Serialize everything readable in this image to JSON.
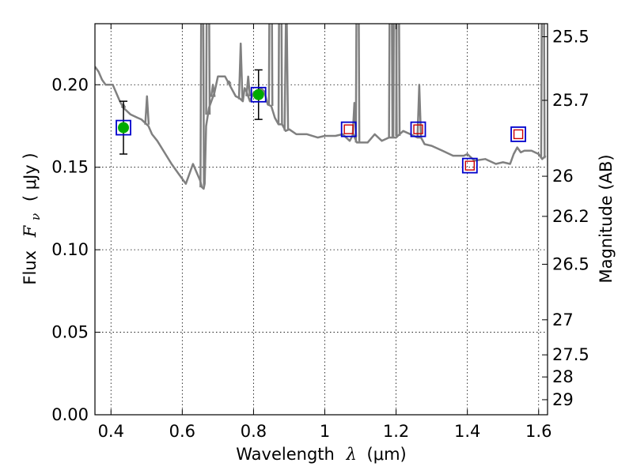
{
  "chart_data": {
    "type": "scatter",
    "xlabel": "Wavelength",
    "xlabel_symbol": "λ",
    "xlabel_unit": "(μm)",
    "ylabel": "Flux",
    "ylabel_symbol": "F",
    "ylabel_subscript": "ν",
    "ylabel_unit": "( μJy )",
    "y2label": "Magnitude (AB)",
    "xlim": [
      0.355,
      1.625
    ],
    "ylim": [
      0.0,
      0.237
    ],
    "grid": true,
    "legend": "none",
    "colors": {
      "model": "#808080",
      "observed_fill": "#00aa00",
      "observed_box": "#0000cc",
      "predicted_inner": "#cc0000",
      "predicted_box": "#0000cc",
      "errorbar": "#000000"
    },
    "x_ticks": [
      {
        "v": 0.4,
        "label": "0.4"
      },
      {
        "v": 0.6,
        "label": "0.6"
      },
      {
        "v": 0.8,
        "label": "0.8"
      },
      {
        "v": 1.0,
        "label": "1"
      },
      {
        "v": 1.2,
        "label": "1.2"
      },
      {
        "v": 1.4,
        "label": "1.4"
      },
      {
        "v": 1.6,
        "label": "1.6"
      }
    ],
    "y_ticks": [
      {
        "v": 0.0,
        "label": "0.00"
      },
      {
        "v": 0.05,
        "label": "0.05"
      },
      {
        "v": 0.1,
        "label": "0.10"
      },
      {
        "v": 0.15,
        "label": "0.15"
      },
      {
        "v": 0.2,
        "label": "0.20"
      }
    ],
    "mag_ticks": [
      {
        "v": 25.5,
        "label": "25.5"
      },
      {
        "v": 25.7,
        "label": "25.7"
      },
      {
        "v": 26.0,
        "label": "26"
      },
      {
        "v": 26.2,
        "label": "26.2"
      },
      {
        "v": 26.5,
        "label": "26.5"
      },
      {
        "v": 27.0,
        "label": "27"
      },
      {
        "v": 27.5,
        "label": "27.5"
      },
      {
        "v": 28.0,
        "label": "28"
      },
      {
        "v": 29.0,
        "label": "29"
      }
    ],
    "model_spectrum": {
      "x": [
        0.355,
        0.365,
        0.375,
        0.385,
        0.395,
        0.405,
        0.415,
        0.425,
        0.435,
        0.445,
        0.455,
        0.465,
        0.475,
        0.485,
        0.495,
        0.5,
        0.505,
        0.515,
        0.53,
        0.55,
        0.57,
        0.59,
        0.61,
        0.63,
        0.64,
        0.65,
        0.655,
        0.66,
        0.663,
        0.667,
        0.675,
        0.69,
        0.7,
        0.72,
        0.74,
        0.75,
        0.76,
        0.77,
        0.775,
        0.78,
        0.785,
        0.79,
        0.8,
        0.82,
        0.83,
        0.84,
        0.85,
        0.86,
        0.87,
        0.88,
        0.89,
        0.9,
        0.92,
        0.95,
        0.98,
        1.0,
        1.03,
        1.05,
        1.07,
        1.08,
        1.09,
        1.1,
        1.12,
        1.14,
        1.16,
        1.18,
        1.2,
        1.22,
        1.24,
        1.26,
        1.27,
        1.28,
        1.3,
        1.33,
        1.36,
        1.39,
        1.4,
        1.42,
        1.45,
        1.48,
        1.5,
        1.52,
        1.53,
        1.54,
        1.55,
        1.56,
        1.58,
        1.6,
        1.61,
        1.62
      ],
      "y": [
        0.211,
        0.208,
        0.203,
        0.2,
        0.2,
        0.2,
        0.195,
        0.19,
        0.186,
        0.184,
        0.182,
        0.181,
        0.18,
        0.179,
        0.177,
        0.176,
        0.175,
        0.17,
        0.166,
        0.159,
        0.152,
        0.146,
        0.14,
        0.152,
        0.147,
        0.142,
        0.138,
        0.137,
        0.14,
        0.175,
        0.186,
        0.195,
        0.205,
        0.205,
        0.197,
        0.193,
        0.192,
        0.19,
        0.198,
        0.196,
        0.193,
        0.19,
        0.195,
        0.198,
        0.196,
        0.188,
        0.187,
        0.18,
        0.176,
        0.176,
        0.172,
        0.173,
        0.17,
        0.17,
        0.168,
        0.169,
        0.169,
        0.17,
        0.166,
        0.17,
        0.165,
        0.165,
        0.165,
        0.17,
        0.166,
        0.168,
        0.168,
        0.172,
        0.17,
        0.168,
        0.168,
        0.164,
        0.163,
        0.16,
        0.157,
        0.157,
        0.158,
        0.154,
        0.155,
        0.152,
        0.153,
        0.152,
        0.158,
        0.162,
        0.159,
        0.16,
        0.16,
        0.158,
        0.155,
        0.157
      ]
    },
    "model_spikes": [
      {
        "x": 0.435,
        "y": 0.188
      },
      {
        "x": 0.501,
        "y": 0.193
      },
      {
        "x": 0.656,
        "y": 0.4
      },
      {
        "x": 0.672,
        "y": 0.4
      },
      {
        "x": 0.686,
        "y": 0.2
      },
      {
        "x": 0.731,
        "y": 0.202
      },
      {
        "x": 0.764,
        "y": 0.225
      },
      {
        "x": 0.785,
        "y": 0.205
      },
      {
        "x": 0.848,
        "y": 0.4
      },
      {
        "x": 0.875,
        "y": 0.4
      },
      {
        "x": 0.892,
        "y": 0.26
      },
      {
        "x": 1.083,
        "y": 0.189
      },
      {
        "x": 1.092,
        "y": 0.4
      },
      {
        "x": 1.185,
        "y": 0.4
      },
      {
        "x": 1.197,
        "y": 0.4
      },
      {
        "x": 1.205,
        "y": 0.4
      },
      {
        "x": 1.265,
        "y": 0.2
      },
      {
        "x": 1.612,
        "y": 0.4
      }
    ],
    "observed": [
      {
        "x": 0.435,
        "y": 0.174,
        "yerr": 0.016
      },
      {
        "x": 0.814,
        "y": 0.194,
        "yerr": 0.015
      }
    ],
    "predicted": [
      {
        "x": 1.067,
        "y": 0.173
      },
      {
        "x": 1.262,
        "y": 0.173
      },
      {
        "x": 1.407,
        "y": 0.151
      },
      {
        "x": 1.543,
        "y": 0.17
      }
    ]
  }
}
